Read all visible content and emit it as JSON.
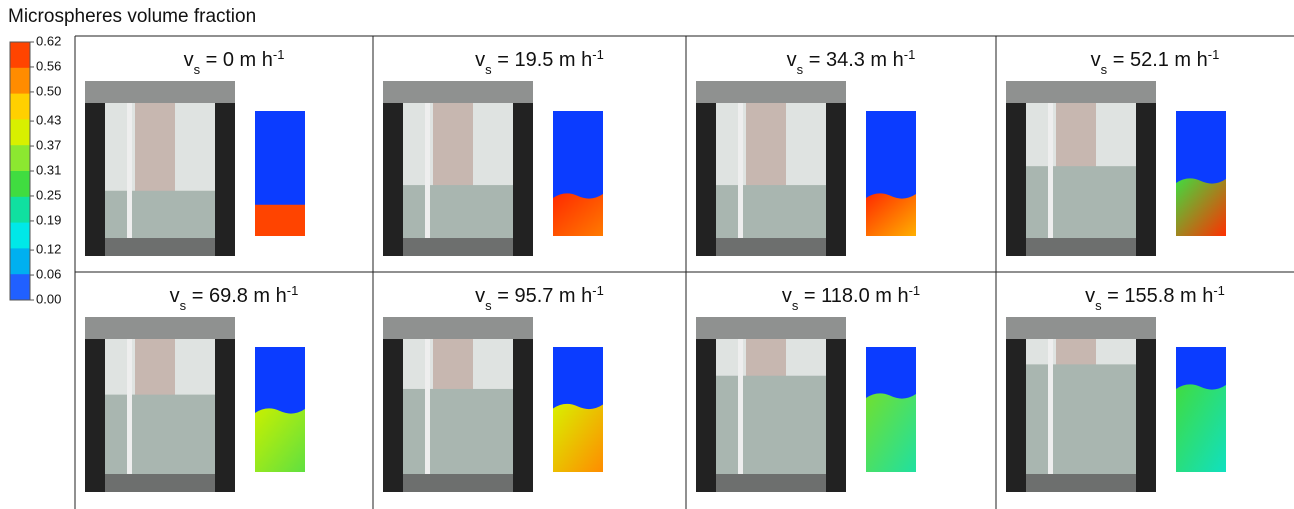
{
  "title": "Microspheres volume fraction",
  "colorbar": {
    "ticks": [
      {
        "value": 0.62,
        "label": "0.62"
      },
      {
        "value": 0.56,
        "label": "0.56"
      },
      {
        "value": 0.5,
        "label": "0.50"
      },
      {
        "value": 0.43,
        "label": "0.43"
      },
      {
        "value": 0.37,
        "label": "0.37"
      },
      {
        "value": 0.31,
        "label": "0.31"
      },
      {
        "value": 0.25,
        "label": "0.25"
      },
      {
        "value": 0.19,
        "label": "0.19"
      },
      {
        "value": 0.12,
        "label": "0.12"
      },
      {
        "value": 0.06,
        "label": "0.06"
      },
      {
        "value": 0,
        "label": "0.00"
      }
    ],
    "colors": [
      "#ff4400",
      "#ff8c00",
      "#ffd000",
      "#d8f000",
      "#8ce830",
      "#40dc40",
      "#10e0a0",
      "#00e8e8",
      "#00b0f0",
      "#2060ff"
    ]
  },
  "panels": [
    {
      "symbol": "v",
      "subscript": "s",
      "text": " = 0 m h",
      "superscript": "-1"
    },
    {
      "symbol": "v",
      "subscript": "s",
      "text": " = 19.5 m h",
      "superscript": "-1"
    },
    {
      "symbol": "v",
      "subscript": "s",
      "text": " = 34.3 m h",
      "superscript": "-1"
    },
    {
      "symbol": "v",
      "subscript": "s",
      "text": " = 52.1 m h",
      "superscript": "-1"
    },
    {
      "symbol": "v",
      "subscript": "s",
      "text": " = 69.8 m h",
      "superscript": "-1"
    },
    {
      "symbol": "v",
      "subscript": "s",
      "text": " = 95.7 m h",
      "superscript": "-1"
    },
    {
      "symbol": "v",
      "subscript": "s",
      "text": " = 118.0 m h",
      "superscript": "-1"
    },
    {
      "symbol": "v",
      "subscript": "s",
      "text": " = 155.8 m h",
      "superscript": "-1"
    }
  ]
}
